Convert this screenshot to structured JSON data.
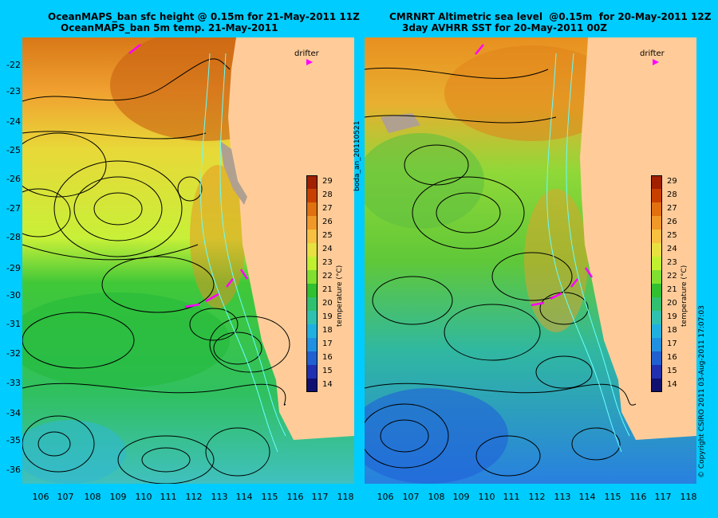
{
  "titles": {
    "left_line1": "OceanMAPS_ban sfc height @ 0.15m for 21-May-2011 11Z",
    "left_line2": "OceanMAPS_ban 5m temp. 21-May-2011",
    "right_line1": "CMRNRT Altimetric sea level  @0.15m  for 20-May-2011 12Z",
    "right_line2": "3day AVHRR SST for 20-May-2011 00Z"
  },
  "axes": {
    "lat_labels": [
      "-22",
      "-23",
      "-24",
      "-25",
      "-26",
      "-27",
      "-28",
      "-29",
      "-30",
      "-31",
      "-32",
      "-33",
      "-34",
      "-35",
      "-36"
    ],
    "lon_labels": [
      "106",
      "107",
      "108",
      "109",
      "110",
      "111",
      "112",
      "113",
      "114",
      "115",
      "116",
      "117",
      "118"
    ]
  },
  "legend": {
    "drifter_label": "drifter",
    "drifter_color": "#ff00ff",
    "colorbar_title": "temperature (°C)",
    "colorbar_ticks": [
      "29",
      "28",
      "27",
      "26",
      "25",
      "24",
      "23",
      "22",
      "21",
      "20",
      "19",
      "18",
      "17",
      "16",
      "15",
      "14"
    ],
    "colorbar_colors": [
      "#a02000",
      "#c84000",
      "#e07010",
      "#f09828",
      "#f8c040",
      "#e8e040",
      "#c0f030",
      "#80e030",
      "#30c030",
      "#30c070",
      "#30c0b0",
      "#20b0e0",
      "#2090e0",
      "#2060d0",
      "#2030b0",
      "#101070"
    ]
  },
  "side_text": {
    "run_id": "boda_an_20110521",
    "copyright": "© Copyright CSIRO 2011   03-Aug-2011 17:07:03"
  },
  "colors": {
    "background": "#00ccff",
    "land": "#ffcc99",
    "contour": "#000000",
    "bathymetry": "#66ffff",
    "drifter": "#ff00ff"
  }
}
